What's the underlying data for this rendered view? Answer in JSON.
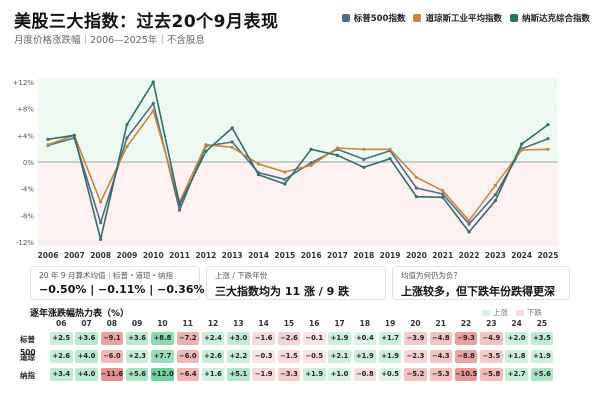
{
  "header": {
    "title": "美股三大指数：过去20个9月表现",
    "subtitle": "月度价格涨跌幅｜2006—2025年｜不含股息"
  },
  "legend": [
    {
      "name": "标普500指数",
      "color": "#4b6e8a"
    },
    {
      "name": "道琼斯工业平均指数",
      "color": "#c9873a"
    },
    {
      "name": "纳斯达克综合指数",
      "color": "#2f6e6a"
    }
  ],
  "chart_data": {
    "type": "line",
    "x": [
      "2006",
      "2007",
      "2008",
      "2009",
      "2010",
      "2011",
      "2012",
      "2013",
      "2014",
      "2015",
      "2016",
      "2017",
      "2018",
      "2019",
      "2020",
      "2021",
      "2022",
      "2023",
      "2024",
      "2025"
    ],
    "series": [
      {
        "name": "标普500指数",
        "color": "#4b6e8a",
        "values": [
          2.5,
          3.6,
          -9.1,
          3.6,
          8.8,
          -7.2,
          2.4,
          3.0,
          -1.6,
          -2.6,
          -0.1,
          1.9,
          0.4,
          1.7,
          -3.9,
          -4.8,
          -9.3,
          -4.9,
          2.0,
          3.5
        ]
      },
      {
        "name": "道琼斯工业平均指数",
        "color": "#c9873a",
        "values": [
          2.6,
          4.0,
          -6.0,
          2.3,
          7.7,
          -6.0,
          2.6,
          2.2,
          -0.3,
          -1.5,
          -0.5,
          2.1,
          1.9,
          1.9,
          -2.3,
          -4.3,
          -8.8,
          -3.5,
          1.8,
          1.9
        ]
      },
      {
        "name": "纳斯达克综合指数",
        "color": "#2f6e6a",
        "values": [
          3.4,
          4.0,
          -11.6,
          5.6,
          12.0,
          -6.4,
          1.6,
          5.1,
          -1.9,
          -3.3,
          1.9,
          1.0,
          -0.8,
          0.5,
          -5.2,
          -5.3,
          -10.5,
          -5.8,
          2.7,
          5.6
        ]
      }
    ],
    "y_ticks": [
      "+12%",
      "+8%",
      "+4%",
      "0%",
      "-4%",
      "-8%",
      "-12%"
    ],
    "ylim": [
      -12,
      12
    ],
    "grid": true
  },
  "cards": [
    {
      "label": "20 年 9 月算术均值｜标普・道琼・纳指",
      "value": "−0.50%  |  −0.11%  |  −0.36%"
    },
    {
      "label": "上涨 / 下跌年份",
      "value": "三大指数均为 11 涨 / 9 跌"
    },
    {
      "label": "均值为何仍为负？",
      "value": "上涨较多，但下跌年份跌得更深"
    }
  ],
  "heatmap": {
    "title": "逐年涨跌幅热力表（%）",
    "legend_up": "上涨",
    "legend_down": "下跌",
    "color_up": "#2fbf71",
    "color_down": "#e05a5a",
    "years": [
      "06",
      "07",
      "08",
      "09",
      "10",
      "11",
      "12",
      "13",
      "14",
      "15",
      "16",
      "17",
      "18",
      "19",
      "20",
      "21",
      "22",
      "23",
      "24",
      "25"
    ],
    "rows": [
      {
        "label": "标普500",
        "values": [
          2.5,
          3.6,
          -9.1,
          3.6,
          8.8,
          -7.2,
          2.4,
          3.0,
          -1.6,
          -2.6,
          -0.1,
          1.9,
          0.4,
          1.7,
          -3.9,
          -4.8,
          -9.3,
          -4.9,
          2.0,
          3.5
        ]
      },
      {
        "label": "道琼",
        "values": [
          2.6,
          4.0,
          -6.0,
          2.3,
          7.7,
          -6.0,
          2.6,
          2.2,
          -0.3,
          -1.5,
          -0.5,
          2.1,
          1.9,
          1.9,
          -2.3,
          -4.3,
          -8.8,
          -3.5,
          1.8,
          1.9
        ]
      },
      {
        "label": "纳指",
        "values": [
          3.4,
          4.0,
          -11.6,
          5.6,
          12.0,
          -6.4,
          1.6,
          5.1,
          -1.9,
          -3.3,
          1.9,
          1.0,
          -0.8,
          0.5,
          -5.2,
          -5.3,
          -10.5,
          -5.8,
          2.7,
          5.6
        ]
      }
    ]
  }
}
